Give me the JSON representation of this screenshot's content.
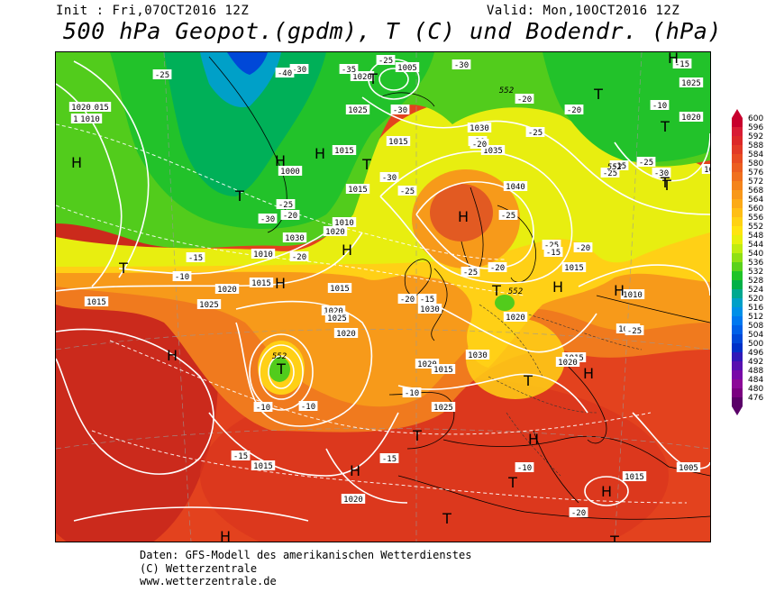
{
  "header": {
    "init": "Init : Fri,07OCT2016 12Z",
    "valid": "Valid: Mon,10OCT2016 12Z",
    "title": "500 hPa Geopot.(gpdm), T (C) und Bodendr. (hPa)"
  },
  "map": {
    "pressure_labels": [
      "1015",
      "1020",
      "1025",
      "1030",
      "1035",
      "1040",
      "1005",
      "1010",
      "1000",
      "1015",
      "1020",
      "1025",
      "1030",
      "1015",
      "1015",
      "1010",
      "1020",
      "1010",
      "1015",
      "1015",
      "1020",
      "1025",
      "1030",
      "1020",
      "1015",
      "1015",
      "1020",
      "1030",
      "1025",
      "1020",
      "1015",
      "1015",
      "1020",
      "1025",
      "1020",
      "1015",
      "1020",
      "1015",
      "1005",
      "1010",
      "1015",
      "1025",
      "1030",
      "1020"
    ],
    "temp_labels": [
      "-25",
      "-30",
      "-40",
      "-35",
      "-25",
      "-30",
      "-20",
      "-20",
      "-25",
      "-30",
      "-25",
      "-20",
      "-25",
      "-15",
      "-20",
      "-10",
      "-15",
      "-20",
      "-25",
      "-30",
      "-20",
      "-25",
      "-25",
      "-20",
      "-15",
      "-20",
      "-25",
      "-20",
      "-15",
      "-10",
      "-10",
      "-10",
      "-15",
      "-15",
      "-10",
      "-20",
      "-15",
      "-10",
      "-25",
      "-30",
      "-25",
      "-30"
    ],
    "geopot_labels": [
      "552",
      "552",
      "552",
      "552"
    ],
    "highs_label": "H",
    "lows_label": "T"
  },
  "legend": {
    "values": [
      "600",
      "596",
      "592",
      "588",
      "584",
      "580",
      "576",
      "572",
      "568",
      "564",
      "560",
      "556",
      "552",
      "548",
      "544",
      "540",
      "536",
      "532",
      "528",
      "524",
      "520",
      "516",
      "512",
      "508",
      "504",
      "500",
      "496",
      "492",
      "488",
      "484",
      "480",
      "476"
    ],
    "colors": [
      "#c8002d",
      "#d81c34",
      "#dc2828",
      "#e23a26",
      "#e84c22",
      "#ec5e20",
      "#f0701e",
      "#f4841c",
      "#f8981a",
      "#fcaa18",
      "#ffbe16",
      "#ffd214",
      "#ffe410",
      "#e8f00c",
      "#c0ec10",
      "#90e014",
      "#5ad21c",
      "#20c428",
      "#00b048",
      "#00a890",
      "#00a0c8",
      "#0090e8",
      "#0078f0",
      "#0060e8",
      "#0048d8",
      "#0030c8",
      "#3018b8",
      "#5810b0",
      "#7808a8",
      "#8c0898",
      "#7a0080",
      "#5a0068"
    ]
  },
  "footer": {
    "line1": "Daten: GFS-Modell des amerikanischen Wetterdienstes",
    "line2": "(C) Wetterzentrale",
    "line3": "www.wetterzentrale.de"
  }
}
